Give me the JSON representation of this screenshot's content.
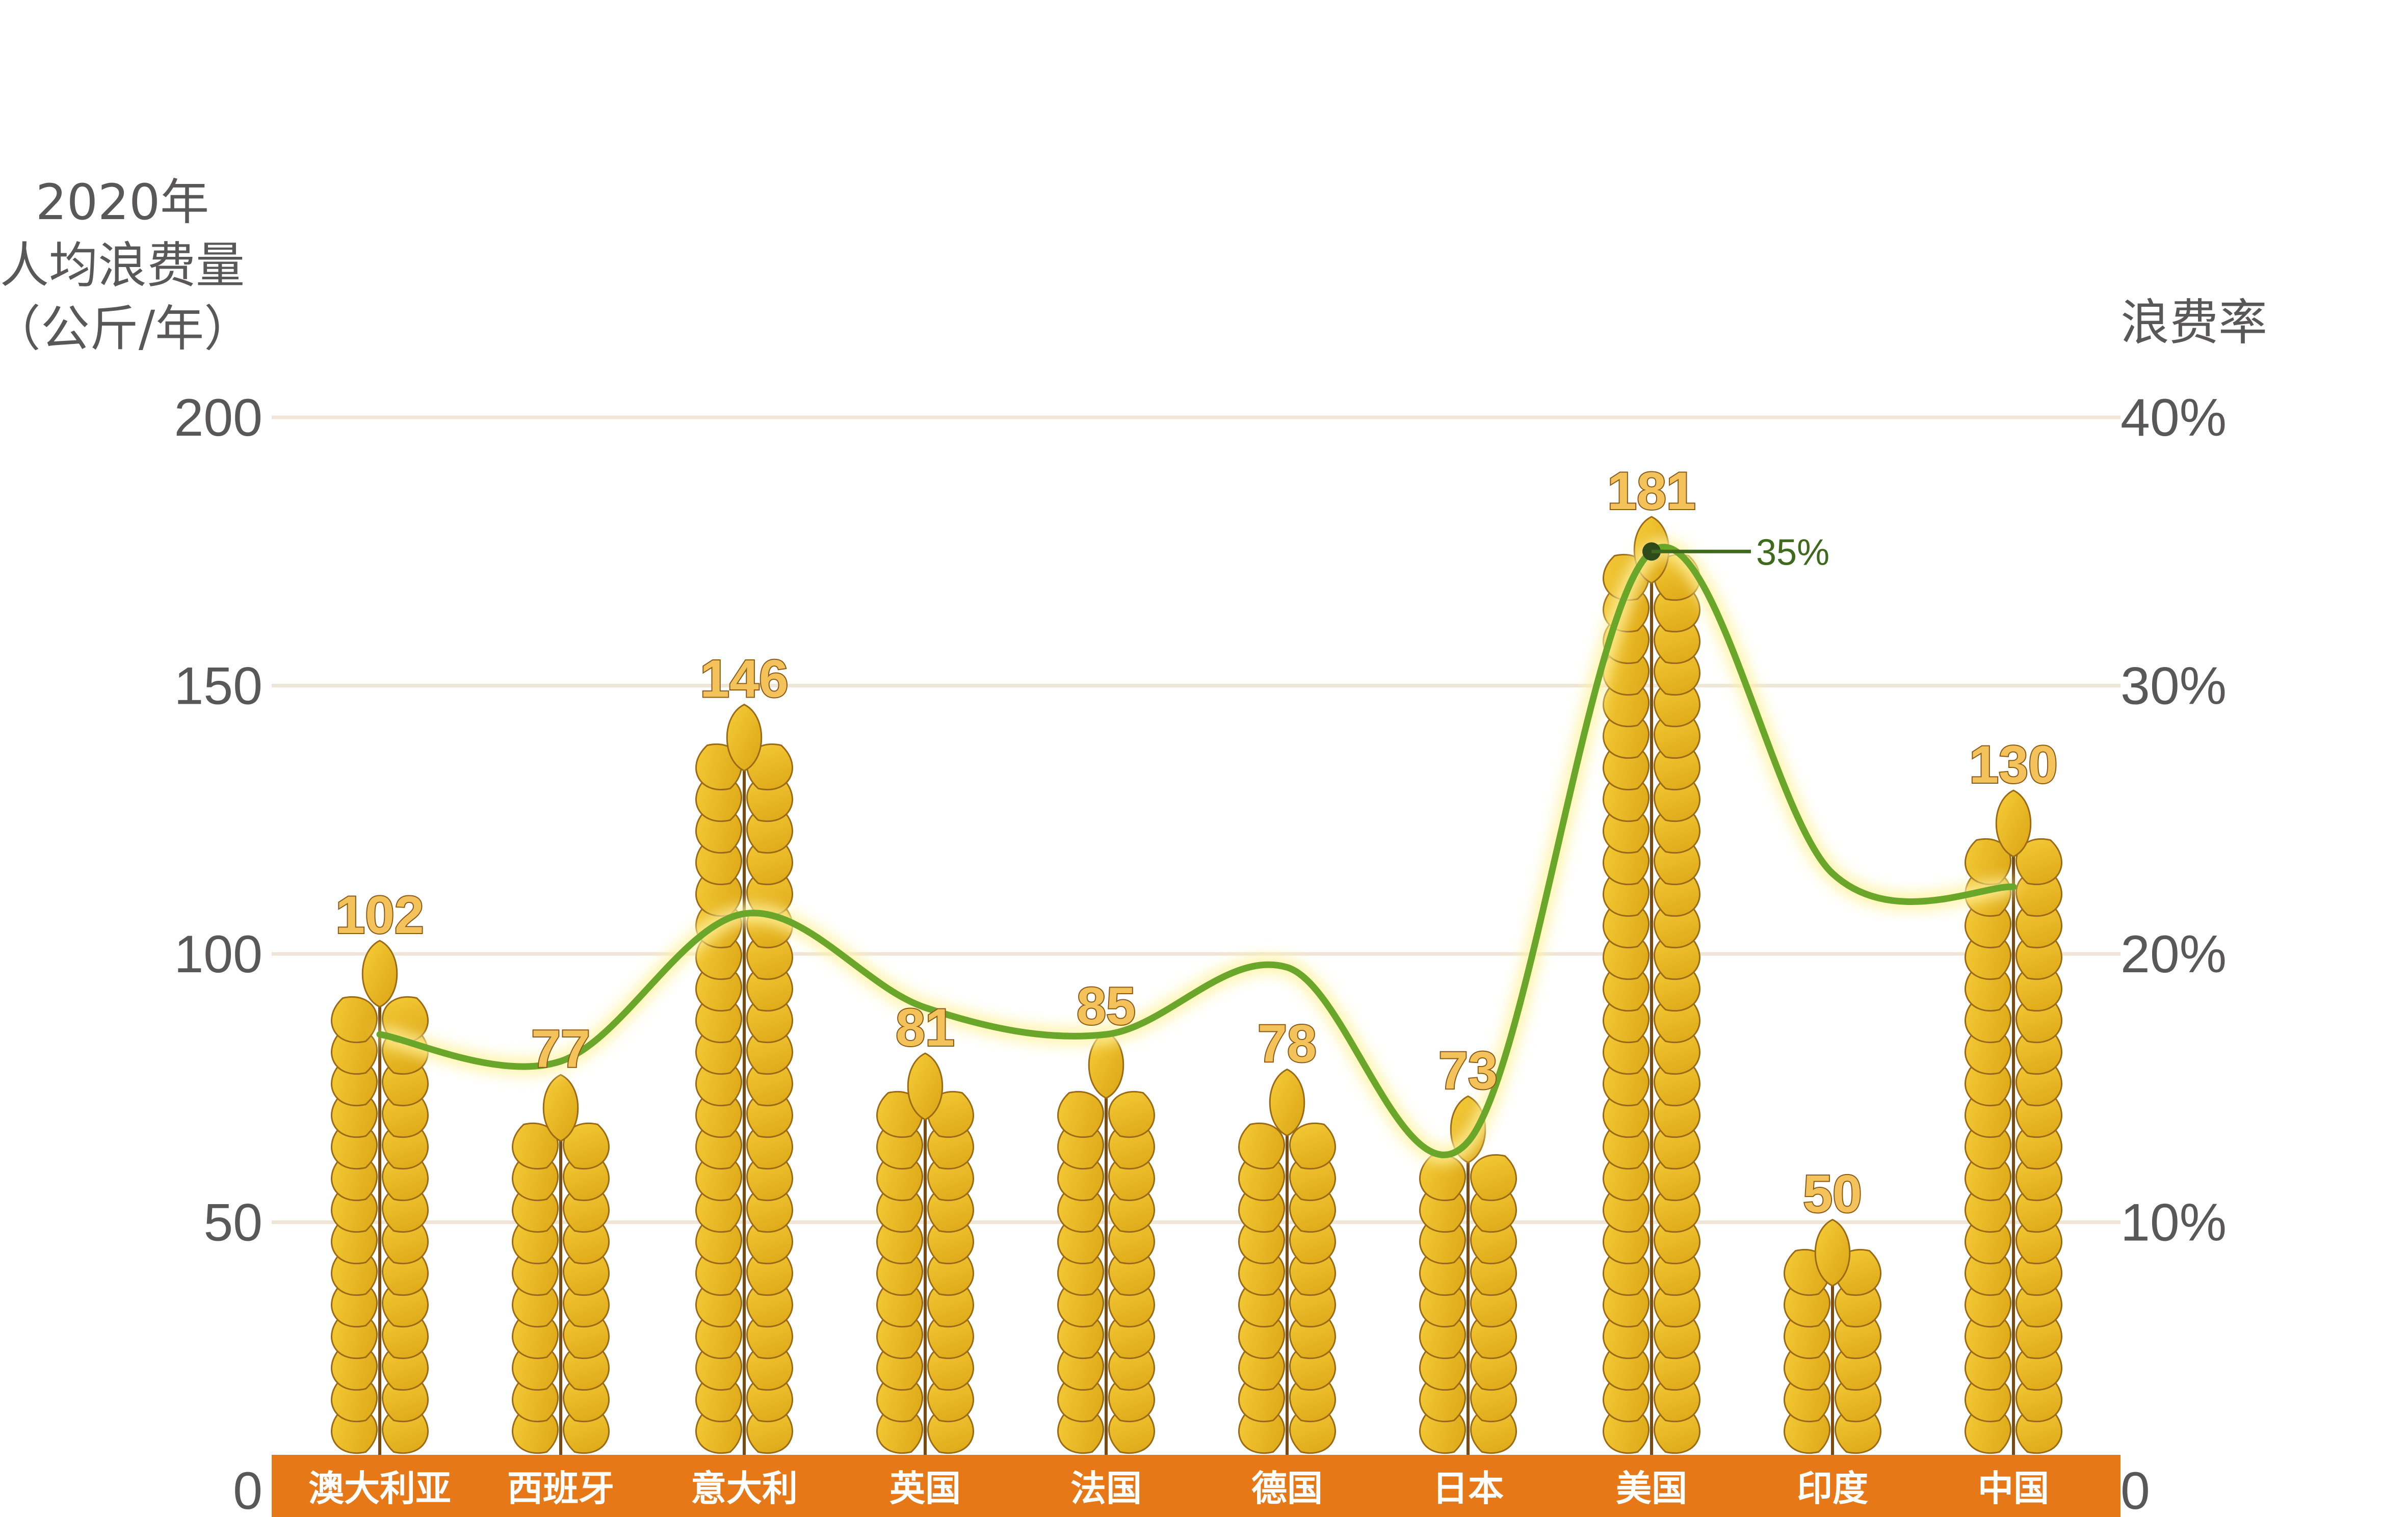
{
  "chart_data": {
    "type": "bar",
    "left_axis_title": [
      "2020年",
      "人均浪费量",
      "（公斤/年）"
    ],
    "right_axis_title": "浪费率",
    "categories": [
      "澳大利亚",
      "西班牙",
      "意大利",
      "英国",
      "法国",
      "德国",
      "日本",
      "美国",
      "印度",
      "中国"
    ],
    "series": [
      {
        "values": [
          102,
          77,
          146,
          81,
          85,
          78,
          73,
          181,
          50,
          130
        ]
      },
      {
        "values": [
          17,
          16,
          21.5,
          18,
          17,
          19.5,
          13,
          35,
          23,
          22.5
        ]
      }
    ],
    "ylim": [
      0,
      200
    ],
    "y_ticks": [
      "0",
      "50",
      "100",
      "150",
      "200"
    ],
    "y2lim": [
      0,
      40
    ],
    "y2_ticks": [
      "0",
      "10%",
      "20%",
      "30%",
      "40%"
    ],
    "callout": "35%",
    "grid": true,
    "colors": {
      "bar": "#e8b415",
      "bar_edge": "#9a6a14",
      "line": "#6aa62a",
      "base": "#e77817",
      "grid": "#f0e6d8",
      "text": "#595757",
      "callout": "#3f6a1e"
    }
  }
}
